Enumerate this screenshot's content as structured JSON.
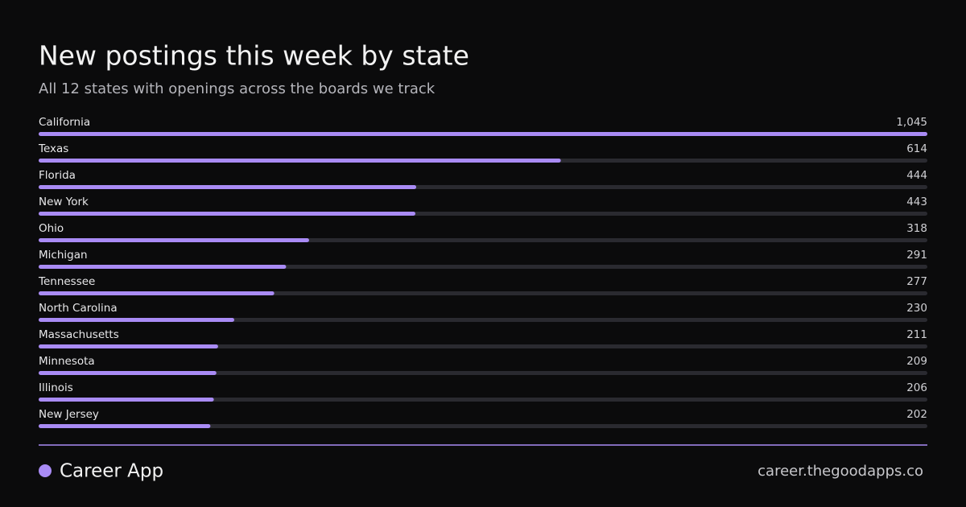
{
  "chart_data": {
    "type": "bar",
    "orientation": "horizontal",
    "title": "New postings this week by state",
    "subtitle": "All 12 states with openings across the boards we track",
    "categories": [
      "California",
      "Texas",
      "Florida",
      "New York",
      "Ohio",
      "Michigan",
      "Tennessee",
      "North Carolina",
      "Massachusetts",
      "Minnesota",
      "Illinois",
      "New Jersey"
    ],
    "values": [
      1045,
      614,
      444,
      443,
      318,
      291,
      277,
      230,
      211,
      209,
      206,
      202
    ],
    "value_labels": [
      "1,045",
      "614",
      "444",
      "443",
      "318",
      "291",
      "277",
      "230",
      "211",
      "209",
      "206",
      "202"
    ],
    "color": "#a98bf5"
  },
  "footer": {
    "brand": "Career App",
    "url": "career.thegoodapps.co"
  }
}
